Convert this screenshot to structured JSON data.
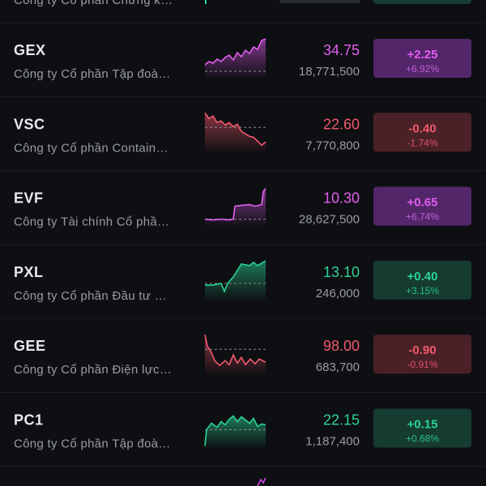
{
  "top_row": {
    "name": "Công ty Cổ phần Chứng k…"
  },
  "rows": [
    {
      "ticker": "GEX",
      "name": "Công ty Cổ phần Tập đoà…",
      "price": "34.75",
      "volume": "18,771,500",
      "change": "+2.25",
      "change_pct": "+6.92%",
      "color": "purple"
    },
    {
      "ticker": "VSC",
      "name": "Công ty Cổ phần Contain…",
      "price": "22.60",
      "volume": "7,770,800",
      "change": "-0.40",
      "change_pct": "-1.74%",
      "color": "red"
    },
    {
      "ticker": "EVF",
      "name": "Công ty Tài chính Cổ phầ…",
      "price": "10.30",
      "volume": "28,627,500",
      "change": "+0.65",
      "change_pct": "+6.74%",
      "color": "purple"
    },
    {
      "ticker": "PXL",
      "name": "Công ty Cổ phần Đầu tư …",
      "price": "13.10",
      "volume": "246,000",
      "change": "+0.40",
      "change_pct": "+3.15%",
      "color": "green"
    },
    {
      "ticker": "GEE",
      "name": "Công ty Cổ phần Điện lực…",
      "price": "98.00",
      "volume": "683,700",
      "change": "-0.90",
      "change_pct": "-0.91%",
      "color": "red"
    },
    {
      "ticker": "PC1",
      "name": "Công ty Cổ phần Tập đoà…",
      "price": "22.15",
      "volume": "1,187,400",
      "change": "+0.15",
      "change_pct": "+0.68%",
      "color": "green"
    }
  ]
}
